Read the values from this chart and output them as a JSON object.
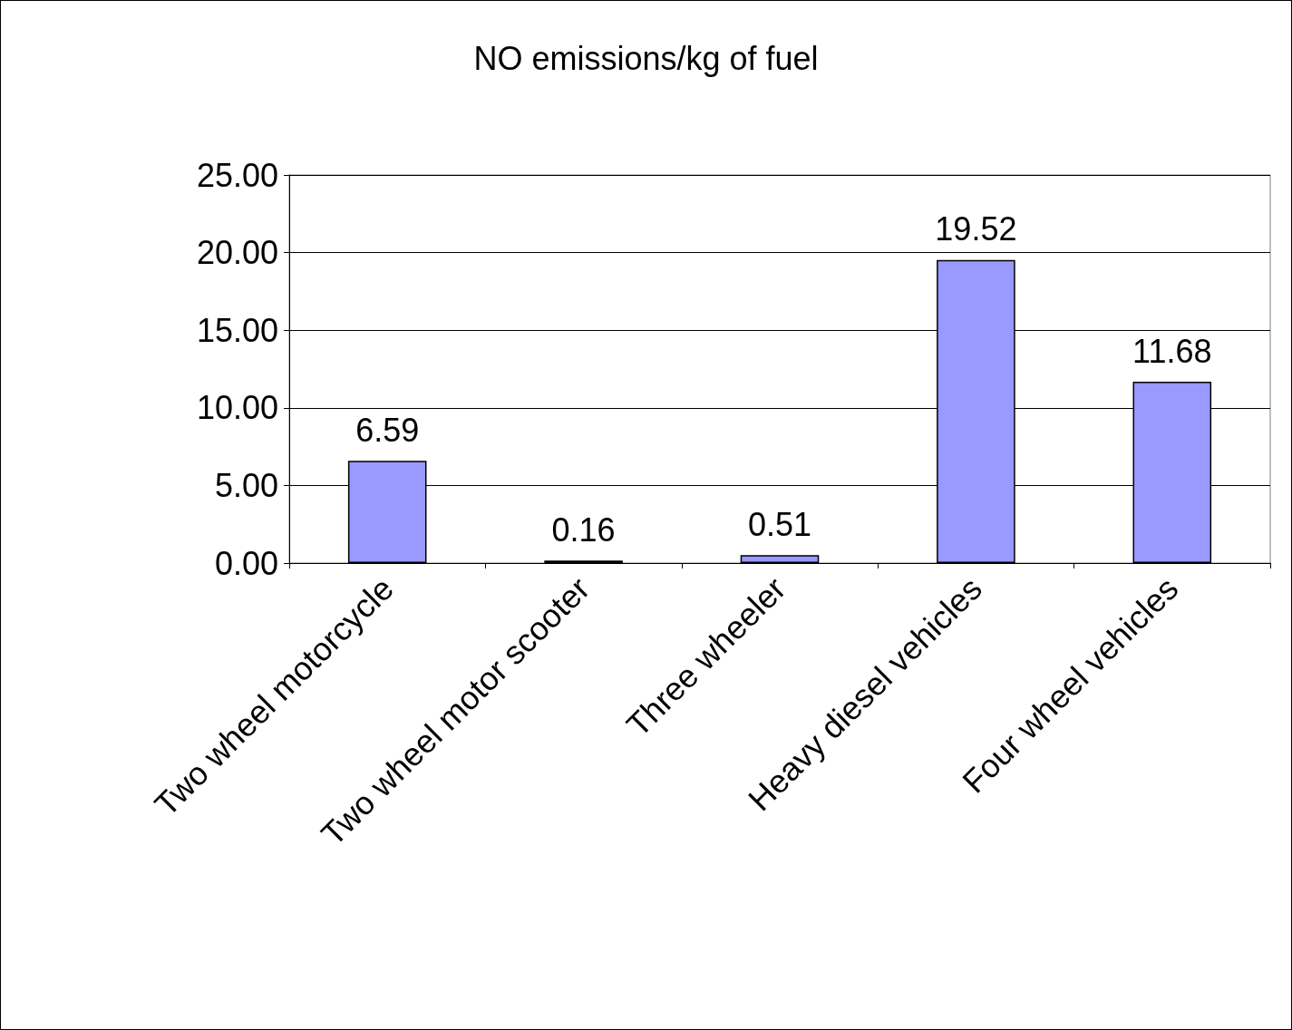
{
  "chart_data": {
    "type": "bar",
    "title": "NO emissions/kg of fuel",
    "categories": [
      "Two wheel motorcycle",
      "Two wheel motor scooter",
      "Three wheeler",
      "Heavy diesel vehicles",
      "Four wheel vehicles"
    ],
    "values": [
      6.59,
      0.16,
      0.51,
      19.52,
      11.68
    ],
    "color": "#9999ff",
    "ylim": [
      0,
      25
    ],
    "yticks": [
      {
        "value": 0,
        "label": "0.00"
      },
      {
        "value": 5,
        "label": "5.00"
      },
      {
        "value": 10,
        "label": "10.00"
      },
      {
        "value": 15,
        "label": "15.00"
      },
      {
        "value": 20,
        "label": "20.00"
      },
      {
        "value": 25,
        "label": "25.00"
      }
    ],
    "grid": "y",
    "data_labels": true
  }
}
